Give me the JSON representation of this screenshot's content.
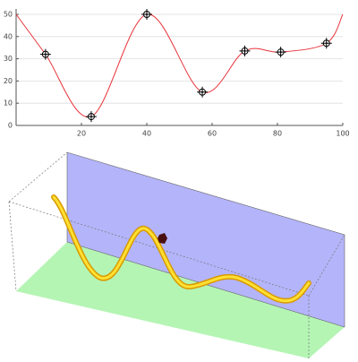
{
  "chart_data": {
    "type": "line",
    "series": [
      {
        "color": "#e8333a",
        "marker": false,
        "x": [
          0,
          9,
          23,
          40,
          57,
          70,
          81,
          95,
          100
        ],
        "values": [
          50,
          32,
          4,
          50,
          15,
          33.5,
          33,
          37,
          50
        ]
      },
      {
        "color": "#000000",
        "marker": true,
        "x": [
          9,
          23,
          40,
          57,
          70,
          81,
          95
        ],
        "values": [
          32,
          4,
          50,
          15,
          33.5,
          33,
          37
        ]
      }
    ],
    "xlim": [
      0,
      100
    ],
    "xticks": [
      20,
      40,
      60,
      80,
      100
    ],
    "ylim": [
      0,
      50
    ],
    "yticks": [
      0,
      10,
      20,
      30,
      40,
      50
    ],
    "grid": true
  }
}
